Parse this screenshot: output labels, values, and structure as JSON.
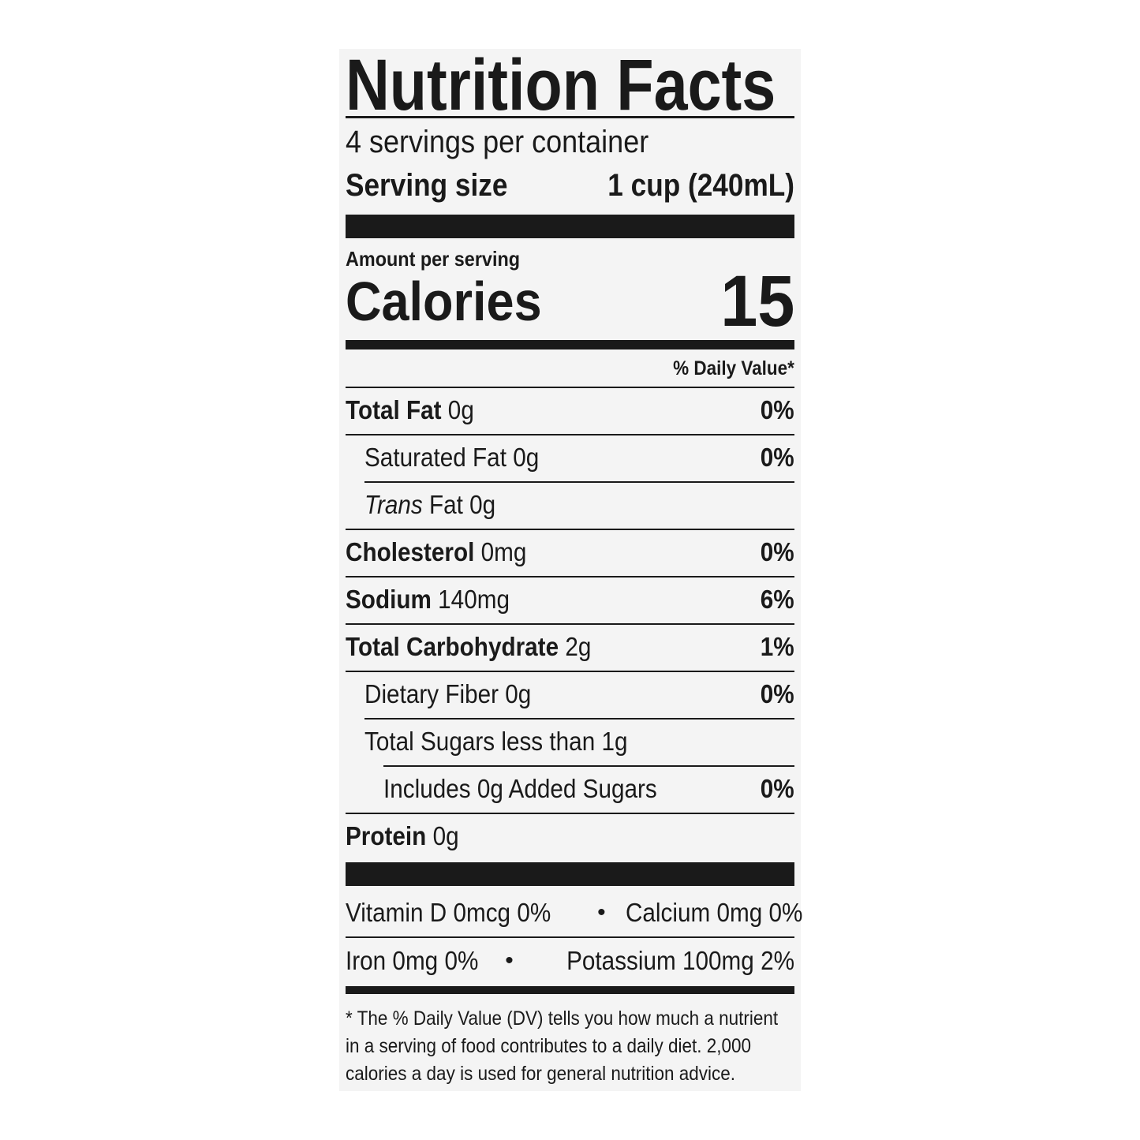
{
  "title": "Nutrition Facts",
  "servings": "4 servings per container",
  "serving_size": {
    "label": "Serving size",
    "value": "1 cup (240mL)"
  },
  "amount_per_serving": "Amount per serving",
  "calories": {
    "label": "Calories",
    "value": "15"
  },
  "dv_header": "% Daily Value*",
  "nutrients": [
    {
      "name": "Total Fat",
      "amount": "0g",
      "dv": "0%"
    },
    {
      "name": "Saturated Fat",
      "amount": "0g",
      "dv": "0%"
    },
    {
      "name_italic": "Trans",
      "name": "Fat",
      "amount": "0g",
      "dv": ""
    },
    {
      "name": "Cholesterol",
      "amount": "0mg",
      "dv": "0%"
    },
    {
      "name": "Sodium",
      "amount": "140mg",
      "dv": "6%"
    },
    {
      "name": "Total Carbohydrate",
      "amount": "2g",
      "dv": "1%"
    },
    {
      "name": "Dietary Fiber",
      "amount": "0g",
      "dv": "0%"
    },
    {
      "name": "Total Sugars less than",
      "amount": "1g",
      "dv": ""
    },
    {
      "name": "Includes 0g Added Sugars",
      "amount": "",
      "dv": "0%"
    },
    {
      "name": "Protein",
      "amount": "0g",
      "dv": ""
    }
  ],
  "micros": [
    {
      "left": "Vitamin D 0mcg 0%",
      "right": "Calcium 0mg 0%"
    },
    {
      "left": "Iron 0mg 0%",
      "right": "Potassium 100mg 2%"
    }
  ],
  "bullet": "•",
  "footnote": "* The % Daily Value (DV) tells you how much a nutrient in a serving of food contributes to a daily diet. 2,000 calories a day is used for general nutrition advice."
}
